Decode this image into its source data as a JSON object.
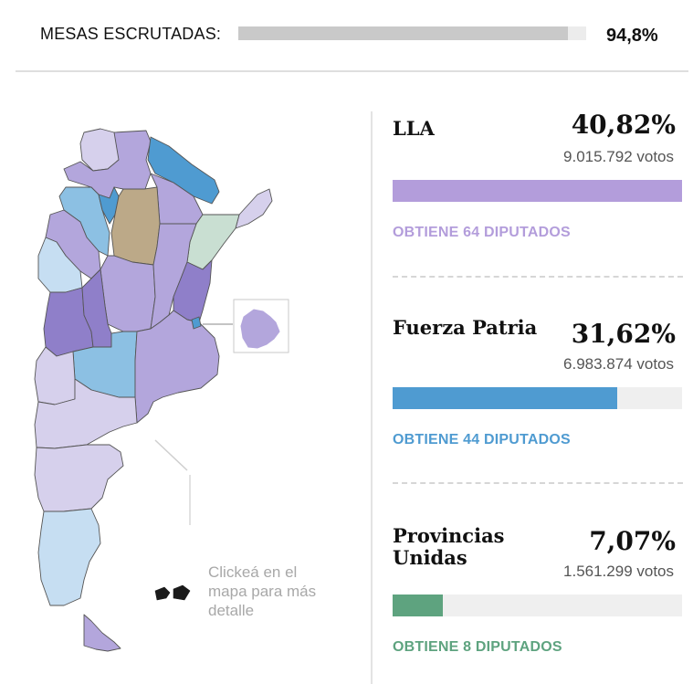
{
  "header": {
    "label": "MESAS ESCRUTADAS:",
    "percent_text": "94,8%",
    "progress": 0.948
  },
  "map": {
    "hint": "Clickeá en el mapa para más detalle",
    "colors": {
      "lla_strong": "#8f7fc9",
      "lla": "#b3a6dc",
      "lla_light": "#d6d0ec",
      "fp_strong": "#4f9bd1",
      "fp": "#8cc0e3",
      "fp_light": "#c6def2",
      "pu": "#c9dfd2",
      "other": "#bca988",
      "border": "#555555"
    }
  },
  "results": [
    {
      "name": "LLA",
      "percent": "40,82%",
      "votes": "9.015.792 votos",
      "share": 0.4082,
      "seats": "OBTIENE 64 DIPUTADOS",
      "color": "#b39ddb"
    },
    {
      "name": "Fuerza Patria",
      "percent": "31,62%",
      "votes": "6.983.874 votos",
      "share": 0.3162,
      "seats": "OBTIENE 44 DIPUTADOS",
      "color": "#4f9bd1"
    },
    {
      "name": "Provincias Unidas",
      "percent": "7,07%",
      "votes": "1.561.299 votos",
      "share": 0.0707,
      "seats": "OBTIENE 8 DIPUTADOS",
      "color": "#5ea37f"
    }
  ]
}
